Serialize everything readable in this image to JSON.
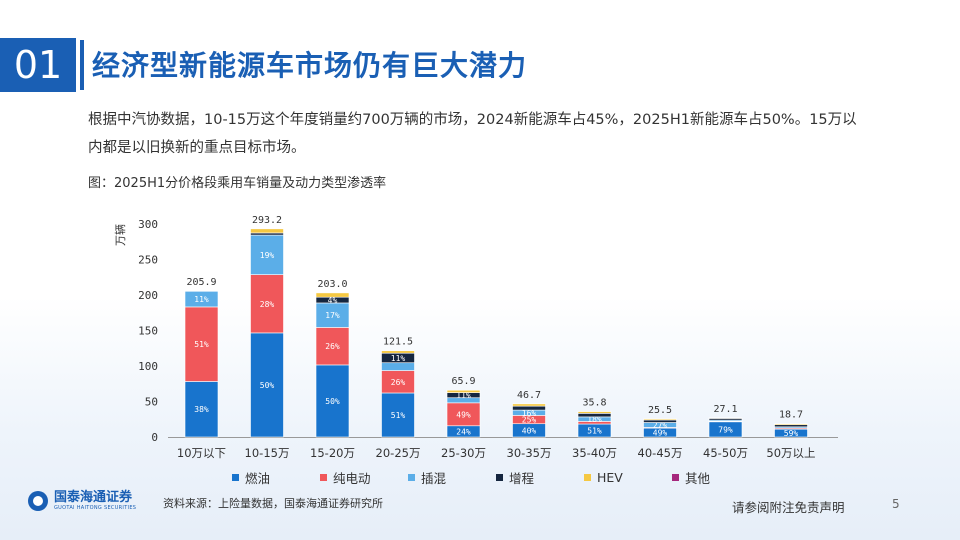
{
  "header": {
    "number": "01",
    "title": "经济型新能源车市场仍有巨大潜力"
  },
  "summary": "根据中汽协数据，10-15万这个年度销量约700万辆的市场，2024新能源车占45%，2025H1新能源车占50%。15万以内都是以旧换新的重点目标市场。",
  "figure_title": "图：2025H1分价格段乘用车销量及动力类型渗透率",
  "source": "资料来源：上险量数据，国泰海通证券研究所",
  "disclaimer": "请参阅附注免责声明",
  "page_number": "5",
  "logo": {
    "cn": "国泰海通证券",
    "en": "GUOTAI HAITONG SECURITIES"
  },
  "chart_data": {
    "type": "bar",
    "stacked": true,
    "ylabel": "万辆",
    "ylim": [
      0,
      300
    ],
    "yticks": [
      0,
      50,
      100,
      150,
      200,
      250,
      300
    ],
    "grid": false,
    "legend_position": "bottom",
    "categories": [
      "10万以下",
      "10-15万",
      "15-20万",
      "20-25万",
      "25-30万",
      "30-35万",
      "35-40万",
      "40-45万",
      "45-50万",
      "50万以上"
    ],
    "totals": [
      205.9,
      293.2,
      203.0,
      121.5,
      65.9,
      46.7,
      35.8,
      25.5,
      27.1,
      18.7
    ],
    "series": [
      {
        "name": "燃油",
        "color": "#1874cd",
        "values": [
          78.2,
          146.6,
          101.5,
          62.0,
          15.8,
          18.7,
          18.3,
          12.5,
          21.4,
          11.0
        ],
        "labels": [
          "38%",
          "50%",
          "50%",
          "51%",
          "24%",
          "40%",
          "51%",
          "49%",
          "79%",
          "59%"
        ]
      },
      {
        "name": "纯电动",
        "color": "#f0575a",
        "values": [
          105.0,
          82.1,
          52.8,
          31.6,
          32.3,
          11.7,
          3.6,
          1.0,
          0.8,
          1.5
        ],
        "labels": [
          "51%",
          "28%",
          "26%",
          "26%",
          "49%",
          "25%",
          "",
          "",
          "",
          ""
        ]
      },
      {
        "name": "插混",
        "color": "#5baee8",
        "values": [
          22.6,
          55.7,
          34.5,
          11.0,
          7.2,
          7.5,
          6.4,
          6.9,
          1.6,
          1.8
        ],
        "labels": [
          "11%",
          "19%",
          "17%",
          "",
          "",
          "16%",
          "18%",
          "27%",
          "",
          ""
        ]
      },
      {
        "name": "增程",
        "color": "#15263f",
        "values": [
          0.0,
          3.0,
          8.1,
          13.4,
          7.2,
          5.6,
          5.0,
          3.6,
          2.4,
          3.0
        ],
        "labels": [
          "",
          "",
          "4%",
          "11%",
          "11%",
          "",
          "",
          "",
          "",
          ""
        ]
      },
      {
        "name": "HEV",
        "color": "#f5c842",
        "values": [
          0.1,
          5.8,
          6.1,
          3.5,
          3.4,
          3.2,
          2.5,
          1.5,
          0.9,
          1.4
        ],
        "labels": [
          "",
          "",
          "",
          "",
          "",
          "",
          "",
          "",
          "",
          ""
        ]
      },
      {
        "name": "其他",
        "color": "#a6287d",
        "values": [
          0,
          0,
          0,
          0,
          0,
          0,
          0,
          0,
          0,
          0
        ],
        "labels": [
          "",
          "",
          "",
          "",
          "",
          "",
          "",
          "",
          "",
          ""
        ]
      }
    ]
  }
}
